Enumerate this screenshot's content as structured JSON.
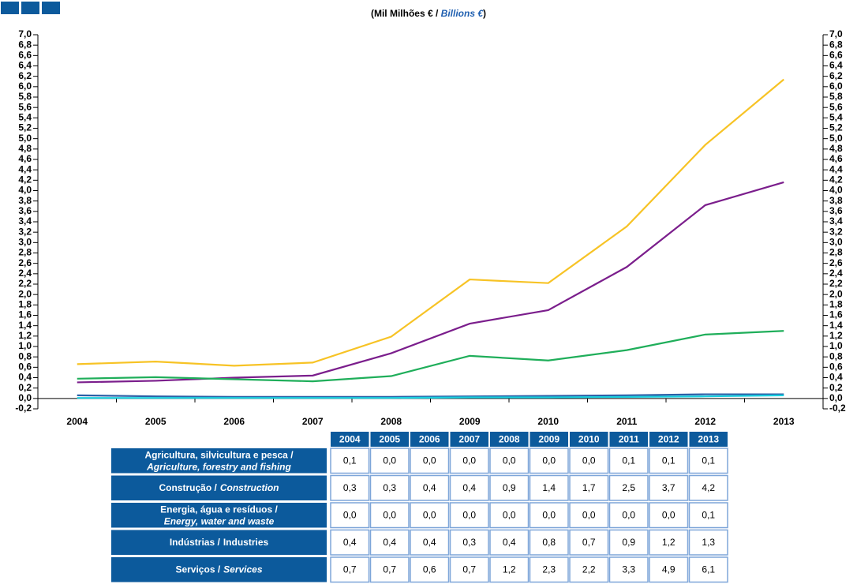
{
  "chart_data": {
    "type": "line",
    "title": [
      "(Mil Milhões € / ",
      "Billions €",
      ")"
    ],
    "categories": [
      "2004",
      "2005",
      "2006",
      "2007",
      "2008",
      "2009",
      "2010",
      "2011",
      "2012",
      "2013"
    ],
    "ylim": [
      -0.2,
      7.0
    ],
    "yticks": [
      {
        "value": -0.2,
        "label": "-0,2"
      },
      {
        "value": 0,
        "label": "0,0"
      },
      {
        "value": 0.2,
        "label": "0,2"
      },
      {
        "value": 0.4,
        "label": "0,4"
      },
      {
        "value": 0.6,
        "label": "0,6"
      },
      {
        "value": 0.8,
        "label": "0,8"
      },
      {
        "value": 1,
        "label": "1,0"
      },
      {
        "value": 1.2,
        "label": "1,2"
      },
      {
        "value": 1.4,
        "label": "1,4"
      },
      {
        "value": 1.6,
        "label": "1,6"
      },
      {
        "value": 1.8,
        "label": "1,8"
      },
      {
        "value": 2,
        "label": "2,0"
      },
      {
        "value": 2.2,
        "label": "2,2"
      },
      {
        "value": 2.4,
        "label": "2,4"
      },
      {
        "value": 2.6,
        "label": "2,6"
      },
      {
        "value": 2.8,
        "label": "2,8"
      },
      {
        "value": 3,
        "label": "3,0"
      },
      {
        "value": 3.2,
        "label": "3,2"
      },
      {
        "value": 3.4,
        "label": "3,4"
      },
      {
        "value": 3.6,
        "label": "3,6"
      },
      {
        "value": 3.8,
        "label": "3,8"
      },
      {
        "value": 4,
        "label": "4,0"
      },
      {
        "value": 4.2,
        "label": "4,2"
      },
      {
        "value": 4.4,
        "label": "4,4"
      },
      {
        "value": 4.6,
        "label": "4,6"
      },
      {
        "value": 4.8,
        "label": "4,8"
      },
      {
        "value": 5,
        "label": "5,0"
      },
      {
        "value": 5.2,
        "label": "5,2"
      },
      {
        "value": 5.4,
        "label": "5,4"
      },
      {
        "value": 5.6,
        "label": "5,6"
      },
      {
        "value": 5.8,
        "label": "5,8"
      },
      {
        "value": 6,
        "label": "6,0"
      },
      {
        "value": 6.2,
        "label": "6,2"
      },
      {
        "value": 6.4,
        "label": "6,4"
      },
      {
        "value": 6.6,
        "label": "6,6"
      },
      {
        "value": 6.8,
        "label": "6,8"
      },
      {
        "value": 7,
        "label": "7,0"
      }
    ],
    "series": [
      {
        "name": "Agricultura, silvicultura e pesca /",
        "name_en": "Agriculture, forestry and fishing",
        "color": "#2b5fa6",
        "values": [
          0.06,
          0.04,
          0.03,
          0.03,
          0.03,
          0.04,
          0.05,
          0.06,
          0.08,
          0.08
        ],
        "value_labels": [
          "0,1",
          "0,0",
          "0,0",
          "0,0",
          "0,0",
          "0,0",
          "0,0",
          "0,1",
          "0,1",
          "0,1"
        ]
      },
      {
        "name": "Construção /",
        "name_en": "Construction",
        "color": "#7b1e8c",
        "values": [
          0.31,
          0.34,
          0.4,
          0.44,
          0.87,
          1.44,
          1.7,
          2.53,
          3.72,
          4.16
        ],
        "value_labels": [
          "0,3",
          "0,3",
          "0,4",
          "0,4",
          "0,9",
          "1,4",
          "1,7",
          "2,5",
          "3,7",
          "4,2"
        ]
      },
      {
        "name": "Energia, água e resíduos /",
        "name_en": "Energy, water and waste",
        "color": "#1ad0e0",
        "values": [
          0.01,
          0.01,
          0.01,
          0.01,
          0.01,
          0.02,
          0.02,
          0.03,
          0.04,
          0.06
        ],
        "value_labels": [
          "0,0",
          "0,0",
          "0,0",
          "0,0",
          "0,0",
          "0,0",
          "0,0",
          "0,0",
          "0,0",
          "0,1"
        ]
      },
      {
        "name": "Indústrias /",
        "name_en": "Industries",
        "color": "#1fae5a",
        "values": [
          0.38,
          0.41,
          0.37,
          0.33,
          0.43,
          0.82,
          0.73,
          0.93,
          1.23,
          1.3
        ],
        "value_labels": [
          "0,4",
          "0,4",
          "0,4",
          "0,3",
          "0,4",
          "0,8",
          "0,7",
          "0,9",
          "1,2",
          "1,3"
        ]
      },
      {
        "name": "Serviços /",
        "name_en": "Services",
        "color": "#f7c325",
        "values": [
          0.66,
          0.71,
          0.63,
          0.69,
          1.19,
          2.29,
          2.22,
          3.31,
          4.88,
          6.14
        ],
        "value_labels": [
          "0,7",
          "0,7",
          "0,6",
          "0,7",
          "1,2",
          "2,3",
          "2,2",
          "3,3",
          "4,9",
          "6,1"
        ]
      }
    ]
  }
}
